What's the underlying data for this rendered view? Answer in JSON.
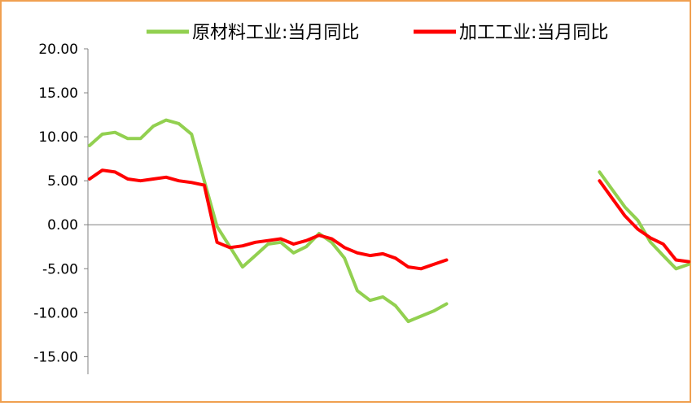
{
  "chart_data": {
    "type": "line",
    "yticks": [
      "20.00",
      "15.00",
      "10.00",
      "5.00",
      "0.00",
      "-5.00",
      "-10.00",
      "-15.00"
    ],
    "ylim": [
      -17,
      20
    ],
    "series": [
      {
        "name": "原材料工业:当月同比",
        "color": "#92d050",
        "values": [
          9.0,
          10.3,
          10.5,
          9.8,
          9.8,
          11.2,
          11.9,
          11.5,
          10.3,
          5.0,
          -0.2,
          -2.5,
          -4.8,
          -3.5,
          -2.2,
          -2.0,
          -3.2,
          -2.5,
          -1.0,
          -2.0,
          -3.8,
          -7.5,
          -8.6,
          -8.2,
          -9.2,
          -11.0,
          -10.4,
          -9.8,
          -9.0,
          null,
          null,
          null,
          null,
          null,
          null,
          null,
          null,
          null,
          null,
          null,
          6.0,
          4.0,
          2.0,
          0.5,
          -2.0,
          -3.5,
          -5.0,
          -4.5
        ]
      },
      {
        "name": "加工工业:当月同比",
        "color": "#ff0000",
        "values": [
          5.2,
          6.2,
          6.0,
          5.2,
          5.0,
          5.2,
          5.4,
          5.0,
          4.8,
          4.5,
          -2.0,
          -2.6,
          -2.4,
          -2.0,
          -1.8,
          -1.6,
          -2.2,
          -1.8,
          -1.2,
          -1.6,
          -2.6,
          -3.2,
          -3.5,
          -3.3,
          -3.8,
          -4.8,
          -5.0,
          -4.5,
          -4.0,
          null,
          null,
          null,
          null,
          null,
          null,
          null,
          null,
          null,
          null,
          null,
          5.0,
          3.0,
          1.0,
          -0.5,
          -1.5,
          -2.2,
          -4.0,
          -4.2
        ]
      }
    ]
  },
  "colors": {
    "frame_border": "#f0a050",
    "axis": "#808080",
    "tick_text": "#000000"
  }
}
